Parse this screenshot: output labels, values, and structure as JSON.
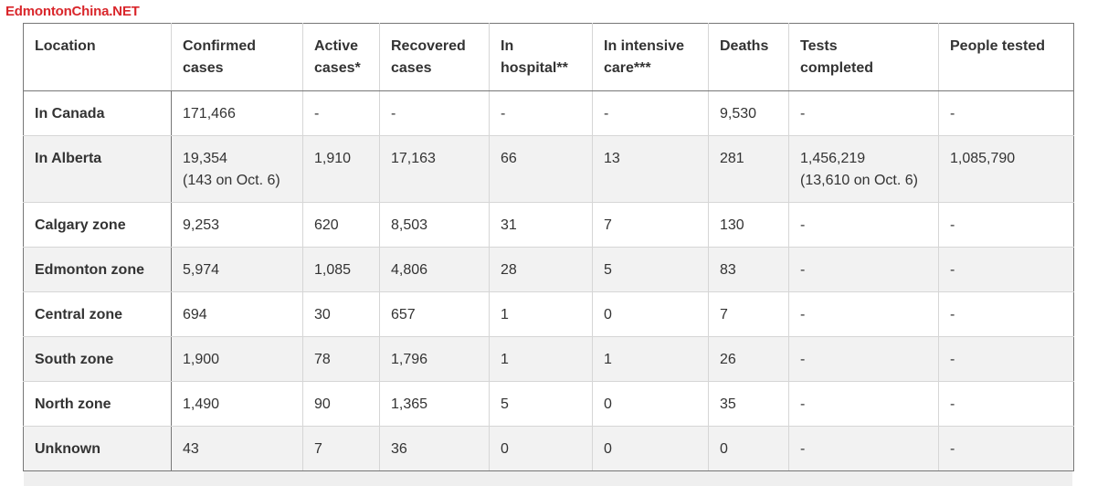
{
  "brand": "EdmontonChina.NET",
  "headers": [
    [
      "Location"
    ],
    [
      "Confirmed",
      "cases"
    ],
    [
      "Active",
      "cases*"
    ],
    [
      "Recovered",
      "cases"
    ],
    [
      "In",
      "hospital**"
    ],
    [
      "In intensive",
      "care***"
    ],
    [
      "Deaths"
    ],
    [
      "Tests",
      "completed"
    ],
    [
      "People tested"
    ]
  ],
  "rows": [
    {
      "location": "In Canada",
      "cells": [
        [
          "171,466"
        ],
        [
          "-"
        ],
        [
          "-"
        ],
        [
          "-"
        ],
        [
          "-"
        ],
        [
          "9,530"
        ],
        [
          "-"
        ],
        [
          "-"
        ]
      ]
    },
    {
      "location": "In Alberta",
      "tall": true,
      "cells": [
        [
          "19,354",
          "(143 on Oct. 6)"
        ],
        [
          "1,910"
        ],
        [
          "17,163"
        ],
        [
          "66"
        ],
        [
          "13"
        ],
        [
          "281"
        ],
        [
          "1,456,219",
          "(13,610 on Oct. 6)"
        ],
        [
          "1,085,790"
        ]
      ]
    },
    {
      "location": "Calgary zone",
      "cells": [
        [
          "9,253"
        ],
        [
          "620"
        ],
        [
          "8,503"
        ],
        [
          "31"
        ],
        [
          "7"
        ],
        [
          "130"
        ],
        [
          "-"
        ],
        [
          "-"
        ]
      ]
    },
    {
      "location": "Edmonton zone",
      "cells": [
        [
          "5,974"
        ],
        [
          "1,085"
        ],
        [
          "4,806"
        ],
        [
          "28"
        ],
        [
          "5"
        ],
        [
          "83"
        ],
        [
          "-"
        ],
        [
          "-"
        ]
      ]
    },
    {
      "location": "Central zone",
      "cells": [
        [
          "694"
        ],
        [
          "30"
        ],
        [
          "657"
        ],
        [
          "1"
        ],
        [
          "0"
        ],
        [
          "7"
        ],
        [
          "-"
        ],
        [
          "-"
        ]
      ]
    },
    {
      "location": "South zone",
      "cells": [
        [
          "1,900"
        ],
        [
          "78"
        ],
        [
          "1,796"
        ],
        [
          "1"
        ],
        [
          "1"
        ],
        [
          "26"
        ],
        [
          "-"
        ],
        [
          "-"
        ]
      ]
    },
    {
      "location": "North zone",
      "cells": [
        [
          "1,490"
        ],
        [
          "90"
        ],
        [
          "1,365"
        ],
        [
          "5"
        ],
        [
          "0"
        ],
        [
          "35"
        ],
        [
          "-"
        ],
        [
          "-"
        ]
      ]
    },
    {
      "location": "Unknown",
      "cells": [
        [
          "43"
        ],
        [
          "7"
        ],
        [
          "36"
        ],
        [
          "0"
        ],
        [
          "0"
        ],
        [
          "0"
        ],
        [
          "-"
        ],
        [
          "-"
        ]
      ]
    }
  ],
  "colors": {
    "brand": "#d9262b",
    "stripe": "#f2f2f2",
    "text": "#333333"
  }
}
